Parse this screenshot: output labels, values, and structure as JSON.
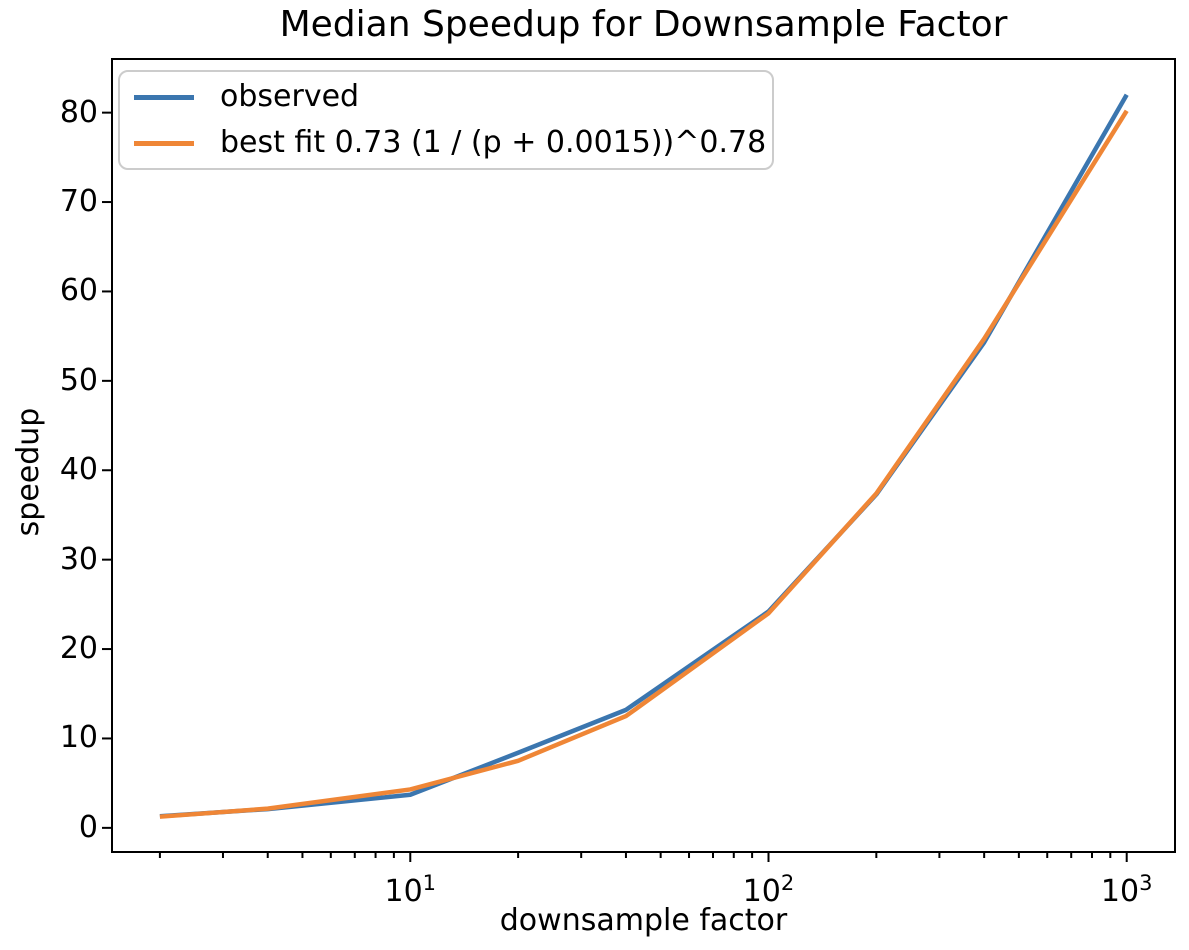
{
  "title": "Median Speedup for Downsample Factor",
  "xlabel": "downsample factor",
  "ylabel": "speedup",
  "legend": {
    "items": [
      {
        "label": "observed",
        "color": "#3B76AF"
      },
      {
        "label": "best fit 0.73 (1 / (p + 0.0015))^0.78",
        "color": "#EF8636"
      }
    ]
  },
  "colors": {
    "observed_line": "#3B76AF",
    "best_fit_line": "#EF8636",
    "axis": "#000000",
    "legend_border": "#cccccc",
    "background": "#ffffff"
  },
  "chart_data": {
    "type": "line",
    "title": "Median Speedup for Downsample Factor",
    "xlabel": "downsample factor",
    "ylabel": "speedup",
    "x_scale": "log",
    "grid": false,
    "legend_position": "upper left",
    "x": [
      2,
      4,
      10,
      20,
      40,
      100,
      200,
      400,
      1000
    ],
    "series": [
      {
        "name": "observed",
        "color": "#3B76AF",
        "values": [
          1.3,
          2.1,
          3.7,
          8.4,
          13.2,
          24.2,
          37.3,
          54.3,
          82.0
        ]
      },
      {
        "name": "best fit 0.73 (1 / (p + 0.0015))^0.78",
        "color": "#EF8636",
        "values": [
          1.25,
          2.15,
          4.3,
          7.5,
          12.5,
          24.0,
          37.4,
          54.7,
          80.2
        ]
      }
    ],
    "xlim": [
      1.47,
      1364
    ],
    "ylim": [
      -2.7,
      86
    ],
    "y_ticks": [
      0,
      10,
      20,
      30,
      40,
      50,
      60,
      70,
      80
    ],
    "x_major_ticks": [
      10,
      100,
      1000
    ],
    "x_minor_ticks": [
      2,
      3,
      4,
      5,
      6,
      7,
      8,
      9,
      20,
      30,
      40,
      50,
      60,
      70,
      80,
      90,
      200,
      300,
      400,
      500,
      600,
      700,
      800,
      900
    ]
  }
}
